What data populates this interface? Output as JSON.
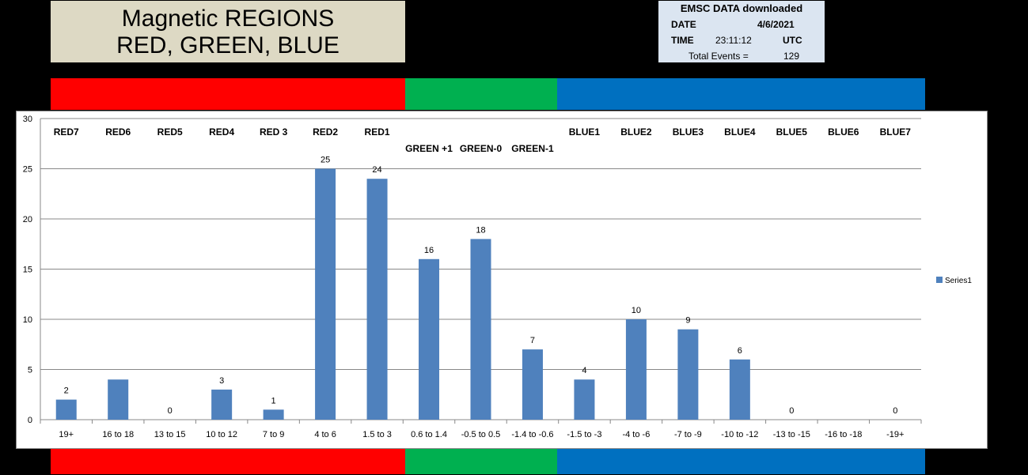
{
  "title": {
    "line1": "Magnetic REGIONS",
    "line2": "RED, GREEN, BLUE"
  },
  "info": {
    "header": "EMSC DATA downloaded",
    "date_label": "DATE",
    "date_value": "4/6/2021",
    "time_label": "TIME",
    "time_value": "23:11:12",
    "time_zone": "UTC",
    "events_label": "Total Events =",
    "events_value": "129"
  },
  "colors": {
    "red": "#ff0000",
    "green": "#00b050",
    "blue": "#0070c0",
    "bar": "#4f81bd"
  },
  "chart_data": {
    "type": "bar",
    "categories": [
      "19+",
      "16 to 18",
      "13 to 15",
      "10 to 12",
      "7 to 9",
      "4 to 6",
      "1.5 to 3",
      "0.6 to 1.4",
      "-0.5 to 0.5",
      "-1.4 to -0.6",
      "-1.5 to -3",
      "-4 to -6",
      "-7 to -9",
      "-10 to -12",
      "-13 to -15",
      "-16 to -18",
      "-19+"
    ],
    "series": [
      {
        "name": "Series1",
        "values": [
          2,
          4,
          0,
          3,
          1,
          25,
          24,
          16,
          18,
          7,
          4,
          10,
          9,
          6,
          0,
          0,
          0
        ]
      }
    ],
    "data_labels": [
      "2",
      "",
      "0",
      "3",
      "1",
      "25",
      "24",
      "16",
      "18",
      "7",
      "4",
      "10",
      "9",
      "6",
      "0",
      "",
      "0"
    ],
    "region_labels": [
      "RED7",
      "RED6",
      "RED5",
      "RED4",
      "RED 3",
      "RED2",
      "RED1",
      "GREEN +1",
      "GREEN-0",
      "GREEN-1",
      "BLUE1",
      "BLUE2",
      "BLUE3",
      "BLUE4",
      "BLUE5",
      "BLUE6",
      "BLUE7"
    ],
    "yticks": [
      "0",
      "5",
      "10",
      "15",
      "20",
      "25",
      "30"
    ],
    "ylim": [
      0,
      30
    ],
    "grid": true,
    "legend": "right",
    "xlabel": "",
    "ylabel": "",
    "chart_title": ""
  }
}
